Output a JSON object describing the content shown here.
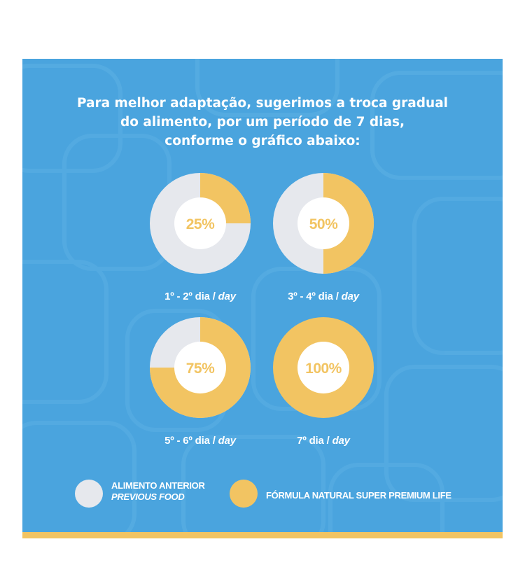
{
  "headline": {
    "line1": "Para melhor adaptação, sugerimos a troca gradual",
    "line2": "do alimento, por um período de 7 dias,",
    "line3": "conforme o gráfico abaixo:"
  },
  "colors": {
    "background": "#4aa4de",
    "previous_food": "#e6e8ed",
    "new_formula": "#f2c462",
    "center": "#ffffff",
    "text": "#ffffff"
  },
  "chart_data": [
    {
      "type": "pie",
      "label": "25%",
      "day_pt": "1º - 2º dia",
      "day_en": "day",
      "slices": [
        {
          "name": "FÓRMULA NATURAL SUPER PREMIUM LIFE",
          "value": 25
        },
        {
          "name": "ALIMENTO ANTERIOR",
          "value": 75
        }
      ]
    },
    {
      "type": "pie",
      "label": "50%",
      "day_pt": "3º - 4º dia",
      "day_en": "day",
      "slices": [
        {
          "name": "FÓRMULA NATURAL SUPER PREMIUM LIFE",
          "value": 50
        },
        {
          "name": "ALIMENTO ANTERIOR",
          "value": 50
        }
      ]
    },
    {
      "type": "pie",
      "label": "75%",
      "day_pt": "5º - 6º dia",
      "day_en": "day",
      "slices": [
        {
          "name": "FÓRMULA NATURAL SUPER PREMIUM LIFE",
          "value": 75
        },
        {
          "name": "ALIMENTO ANTERIOR",
          "value": 25
        }
      ]
    },
    {
      "type": "pie",
      "label": "100%",
      "day_pt": "7º dia",
      "day_en": "day",
      "slices": [
        {
          "name": "FÓRMULA NATURAL SUPER PREMIUM LIFE",
          "value": 100
        },
        {
          "name": "ALIMENTO ANTERIOR",
          "value": 0
        }
      ]
    }
  ],
  "legend": {
    "previous": {
      "pt": "ALIMENTO ANTERIOR",
      "en": "PREVIOUS FOOD"
    },
    "new": {
      "pt": "FÓRMULA NATURAL SUPER PREMIUM LIFE"
    }
  }
}
